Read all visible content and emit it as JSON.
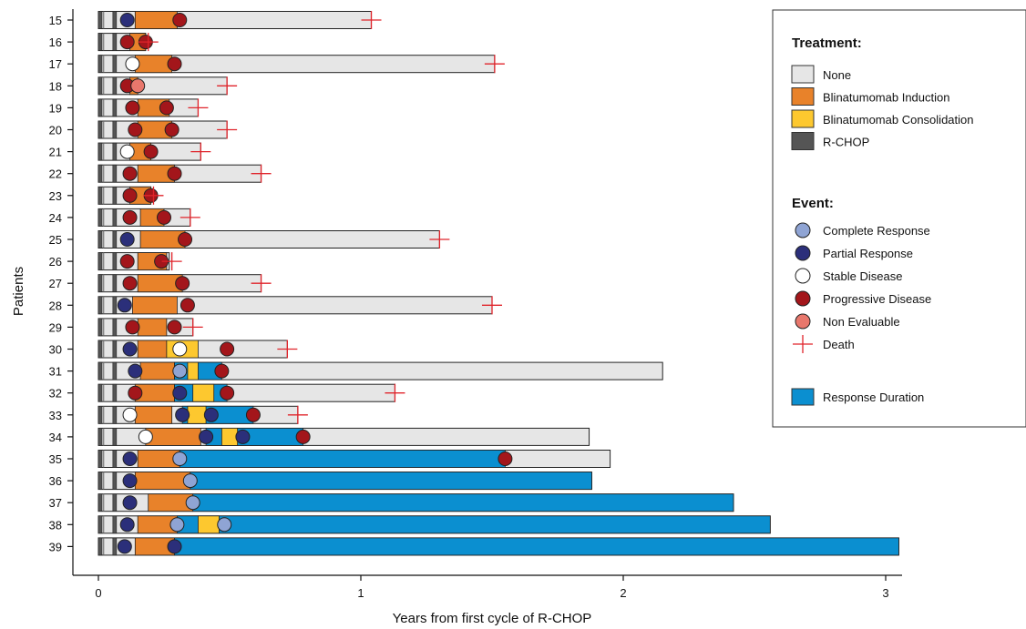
{
  "chart_data": {
    "type": "swimmer",
    "xlabel": "Years from first cycle of R-CHOP",
    "ylabel": "Patients",
    "xlim": [
      0,
      3.05
    ],
    "xticks": [
      "0",
      "1",
      "2",
      "3"
    ],
    "colors": {
      "none": "#e6e6e6",
      "induction": "#e8822a",
      "consolidation": "#fdc82f",
      "rchop": "#555555",
      "response_duration": "#0b8fd0",
      "complete_response": "#8fa4d4",
      "partial_response": "#2b2f7a",
      "stable_disease": "#ffffff",
      "progressive_disease": "#a3161b",
      "non_evaluable": "#e8776c",
      "death": "#e0242b"
    },
    "legend": {
      "treatment_title": "Treatment:",
      "treatment_items": [
        {
          "key": "none",
          "label": "None"
        },
        {
          "key": "induction",
          "label": "Blinatumomab Induction"
        },
        {
          "key": "consolidation",
          "label": "Blinatumomab Consolidation"
        },
        {
          "key": "rchop",
          "label": "R-CHOP"
        }
      ],
      "event_title": "Event:",
      "event_items": [
        {
          "key": "complete_response",
          "label": "Complete Response"
        },
        {
          "key": "partial_response",
          "label": "Partial Response"
        },
        {
          "key": "stable_disease",
          "label": "Stable Disease"
        },
        {
          "key": "progressive_disease",
          "label": "Progressive Disease"
        },
        {
          "key": "non_evaluable",
          "label": "Non Evaluable"
        },
        {
          "key": "death",
          "label": "Death"
        }
      ],
      "duration_label": "Response Duration",
      "placement": "top-right"
    },
    "patients": [
      {
        "id": "15",
        "end": 1.04,
        "death": 1.04,
        "induction": [
          0.14,
          0.3
        ],
        "consolidation": null,
        "response": null,
        "events": [
          {
            "t": 0.11,
            "type": "partial_response"
          },
          {
            "t": 0.31,
            "type": "progressive_disease"
          }
        ]
      },
      {
        "id": "16",
        "end": 0.18,
        "death": 0.19,
        "induction": [
          0.12,
          0.18
        ],
        "consolidation": null,
        "response": null,
        "events": [
          {
            "t": 0.11,
            "type": "progressive_disease"
          },
          {
            "t": 0.18,
            "type": "progressive_disease"
          }
        ]
      },
      {
        "id": "17",
        "end": 1.51,
        "death": 1.51,
        "induction": [
          0.14,
          0.28
        ],
        "consolidation": null,
        "response": null,
        "events": [
          {
            "t": 0.13,
            "type": "stable_disease"
          },
          {
            "t": 0.29,
            "type": "progressive_disease"
          }
        ]
      },
      {
        "id": "18",
        "end": 0.49,
        "death": 0.49,
        "induction": [
          0.12,
          0.15
        ],
        "consolidation": null,
        "response": null,
        "events": [
          {
            "t": 0.11,
            "type": "progressive_disease"
          },
          {
            "t": 0.15,
            "type": "non_evaluable"
          }
        ]
      },
      {
        "id": "19",
        "end": 0.38,
        "death": 0.38,
        "induction": [
          0.15,
          0.27
        ],
        "consolidation": null,
        "response": null,
        "events": [
          {
            "t": 0.13,
            "type": "progressive_disease"
          },
          {
            "t": 0.26,
            "type": "progressive_disease"
          }
        ]
      },
      {
        "id": "20",
        "end": 0.49,
        "death": 0.49,
        "induction": [
          0.15,
          0.28
        ],
        "consolidation": null,
        "response": null,
        "events": [
          {
            "t": 0.14,
            "type": "progressive_disease"
          },
          {
            "t": 0.28,
            "type": "progressive_disease"
          }
        ]
      },
      {
        "id": "21",
        "end": 0.39,
        "death": 0.39,
        "induction": [
          0.12,
          0.2
        ],
        "consolidation": null,
        "response": null,
        "events": [
          {
            "t": 0.11,
            "type": "stable_disease"
          },
          {
            "t": 0.2,
            "type": "progressive_disease"
          }
        ]
      },
      {
        "id": "22",
        "end": 0.62,
        "death": 0.62,
        "induction": [
          0.15,
          0.29
        ],
        "consolidation": null,
        "response": null,
        "events": [
          {
            "t": 0.12,
            "type": "progressive_disease"
          },
          {
            "t": 0.29,
            "type": "progressive_disease"
          }
        ]
      },
      {
        "id": "23",
        "end": 0.2,
        "death": 0.21,
        "induction": [
          0.12,
          0.2
        ],
        "consolidation": null,
        "response": null,
        "events": [
          {
            "t": 0.12,
            "type": "progressive_disease"
          },
          {
            "t": 0.2,
            "type": "progressive_disease"
          }
        ]
      },
      {
        "id": "24",
        "end": 0.35,
        "death": 0.35,
        "induction": [
          0.16,
          0.25
        ],
        "consolidation": null,
        "response": null,
        "events": [
          {
            "t": 0.12,
            "type": "progressive_disease"
          },
          {
            "t": 0.25,
            "type": "progressive_disease"
          }
        ]
      },
      {
        "id": "25",
        "end": 1.3,
        "death": 1.3,
        "induction": [
          0.16,
          0.33
        ],
        "consolidation": null,
        "response": null,
        "events": [
          {
            "t": 0.11,
            "type": "partial_response"
          },
          {
            "t": 0.33,
            "type": "progressive_disease"
          }
        ]
      },
      {
        "id": "26",
        "end": 0.27,
        "death": 0.28,
        "induction": [
          0.15,
          0.26
        ],
        "consolidation": null,
        "response": null,
        "events": [
          {
            "t": 0.11,
            "type": "progressive_disease"
          },
          {
            "t": 0.24,
            "type": "progressive_disease"
          }
        ]
      },
      {
        "id": "27",
        "end": 0.62,
        "death": 0.62,
        "induction": [
          0.15,
          0.32
        ],
        "consolidation": null,
        "response": null,
        "events": [
          {
            "t": 0.12,
            "type": "progressive_disease"
          },
          {
            "t": 0.32,
            "type": "progressive_disease"
          }
        ]
      },
      {
        "id": "28",
        "end": 1.5,
        "death": 1.5,
        "induction": [
          0.13,
          0.3
        ],
        "consolidation": null,
        "response": null,
        "events": [
          {
            "t": 0.1,
            "type": "partial_response"
          },
          {
            "t": 0.34,
            "type": "progressive_disease"
          }
        ]
      },
      {
        "id": "29",
        "end": 0.36,
        "death": 0.36,
        "induction": [
          0.15,
          0.26
        ],
        "consolidation": null,
        "response": null,
        "events": [
          {
            "t": 0.13,
            "type": "progressive_disease"
          },
          {
            "t": 0.29,
            "type": "progressive_disease"
          }
        ]
      },
      {
        "id": "30",
        "end": 0.72,
        "death": 0.72,
        "induction": [
          0.15,
          0.26
        ],
        "consolidation": [
          0.26,
          0.38
        ],
        "response": null,
        "events": [
          {
            "t": 0.12,
            "type": "partial_response"
          },
          {
            "t": 0.31,
            "type": "stable_disease"
          },
          {
            "t": 0.49,
            "type": "progressive_disease"
          }
        ]
      },
      {
        "id": "31",
        "end": 2.15,
        "death": null,
        "induction": [
          0.16,
          0.29
        ],
        "consolidation": [
          0.34,
          0.38
        ],
        "response": [
          0.29,
          0.47
        ],
        "events": [
          {
            "t": 0.14,
            "type": "partial_response"
          },
          {
            "t": 0.31,
            "type": "complete_response"
          },
          {
            "t": 0.47,
            "type": "progressive_disease"
          }
        ]
      },
      {
        "id": "32",
        "end": 1.13,
        "death": 1.13,
        "induction": [
          0.14,
          0.29
        ],
        "consolidation": [
          0.36,
          0.44
        ],
        "response": [
          0.29,
          0.49
        ],
        "events": [
          {
            "t": 0.14,
            "type": "progressive_disease"
          },
          {
            "t": 0.31,
            "type": "partial_response"
          },
          {
            "t": 0.49,
            "type": "progressive_disease"
          }
        ]
      },
      {
        "id": "33",
        "end": 0.76,
        "death": 0.76,
        "induction": [
          0.14,
          0.28
        ],
        "consolidation": [
          0.34,
          0.41
        ],
        "response": [
          0.32,
          0.59
        ],
        "events": [
          {
            "t": 0.12,
            "type": "stable_disease"
          },
          {
            "t": 0.32,
            "type": "partial_response"
          },
          {
            "t": 0.43,
            "type": "partial_response"
          },
          {
            "t": 0.59,
            "type": "progressive_disease"
          }
        ]
      },
      {
        "id": "34",
        "end": 1.87,
        "death": null,
        "induction": [
          0.18,
          0.39
        ],
        "consolidation": [
          0.47,
          0.53
        ],
        "response": [
          0.41,
          0.78
        ],
        "events": [
          {
            "t": 0.18,
            "type": "stable_disease"
          },
          {
            "t": 0.41,
            "type": "partial_response"
          },
          {
            "t": 0.55,
            "type": "partial_response"
          },
          {
            "t": 0.78,
            "type": "progressive_disease"
          }
        ]
      },
      {
        "id": "35",
        "end": 1.95,
        "death": null,
        "induction": [
          0.15,
          0.31
        ],
        "consolidation": null,
        "response": [
          0.31,
          1.55
        ],
        "events": [
          {
            "t": 0.12,
            "type": "partial_response"
          },
          {
            "t": 0.31,
            "type": "complete_response"
          },
          {
            "t": 1.55,
            "type": "progressive_disease"
          }
        ]
      },
      {
        "id": "36",
        "end": 1.88,
        "death": null,
        "induction": [
          0.14,
          0.35
        ],
        "consolidation": null,
        "response": [
          0.35,
          1.88
        ],
        "events": [
          {
            "t": 0.12,
            "type": "partial_response"
          },
          {
            "t": 0.35,
            "type": "complete_response"
          }
        ]
      },
      {
        "id": "37",
        "end": 2.42,
        "death": null,
        "induction": [
          0.19,
          0.36
        ],
        "consolidation": null,
        "response": [
          0.36,
          2.42
        ],
        "events": [
          {
            "t": 0.12,
            "type": "partial_response"
          },
          {
            "t": 0.36,
            "type": "complete_response"
          }
        ]
      },
      {
        "id": "38",
        "end": 2.56,
        "death": null,
        "induction": [
          0.15,
          0.38
        ],
        "consolidation": [
          0.38,
          0.46
        ],
        "response": [
          0.3,
          2.56
        ],
        "events": [
          {
            "t": 0.11,
            "type": "partial_response"
          },
          {
            "t": 0.3,
            "type": "complete_response"
          },
          {
            "t": 0.48,
            "type": "complete_response"
          }
        ]
      },
      {
        "id": "39",
        "end": 3.05,
        "death": null,
        "induction": [
          0.14,
          0.29
        ],
        "consolidation": null,
        "response": [
          0.29,
          3.05
        ],
        "events": [
          {
            "t": 0.1,
            "type": "partial_response"
          },
          {
            "t": 0.29,
            "type": "partial_response"
          }
        ]
      }
    ]
  }
}
